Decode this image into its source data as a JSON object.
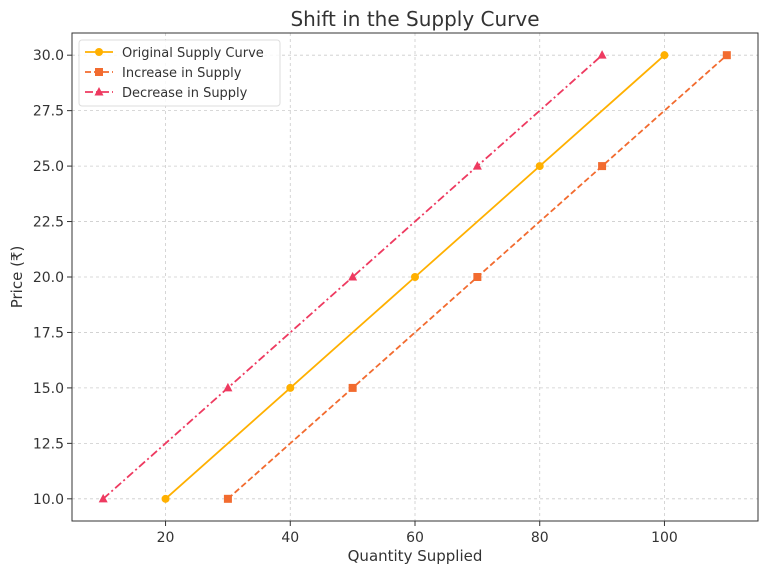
{
  "chart_data": {
    "type": "line",
    "title": "Shift in the Supply Curve",
    "xlabel": "Quantity Supplied",
    "ylabel": "Price (₹)",
    "xlim": [
      5,
      115
    ],
    "ylim": [
      9,
      31
    ],
    "xticks": [
      20,
      40,
      60,
      80,
      100
    ],
    "yticks": [
      10.0,
      12.5,
      15.0,
      17.5,
      20.0,
      22.5,
      25.0,
      27.5,
      30.0
    ],
    "grid": true,
    "legend_position": "top-left",
    "series": [
      {
        "name": "Original Supply Curve",
        "color": "#FFB000",
        "marker": "circle",
        "linestyle": "solid",
        "x": [
          20,
          40,
          60,
          80,
          100
        ],
        "y": [
          10,
          15,
          20,
          25,
          30
        ]
      },
      {
        "name": "Increase in Supply",
        "color": "#F26B2F",
        "marker": "square",
        "linestyle": "dashed",
        "x": [
          30,
          50,
          70,
          90,
          110
        ],
        "y": [
          10,
          15,
          20,
          25,
          30
        ]
      },
      {
        "name": "Decrease in Supply",
        "color": "#EE3A60",
        "marker": "triangle",
        "linestyle": "dashdot",
        "x": [
          10,
          30,
          50,
          70,
          90
        ],
        "y": [
          10,
          15,
          20,
          25,
          30
        ]
      }
    ]
  }
}
